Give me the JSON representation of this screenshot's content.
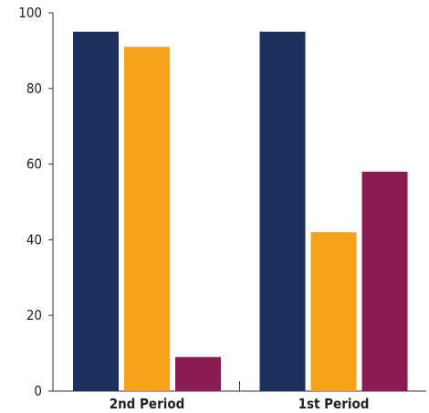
{
  "chart_data": {
    "type": "bar",
    "categories": [
      "2nd Period",
      "1st Period"
    ],
    "series": [
      {
        "values": [
          95,
          95
        ],
        "color": "#1c2f5e"
      },
      {
        "values": [
          91,
          42
        ],
        "color": "#f7a21b"
      },
      {
        "values": [
          9,
          58
        ],
        "color": "#8a1c54"
      }
    ],
    "yticks": [
      "0",
      "20",
      "40",
      "60",
      "80",
      "100"
    ],
    "ylim": [
      0,
      100
    ],
    "grid": false,
    "legend": "none"
  }
}
